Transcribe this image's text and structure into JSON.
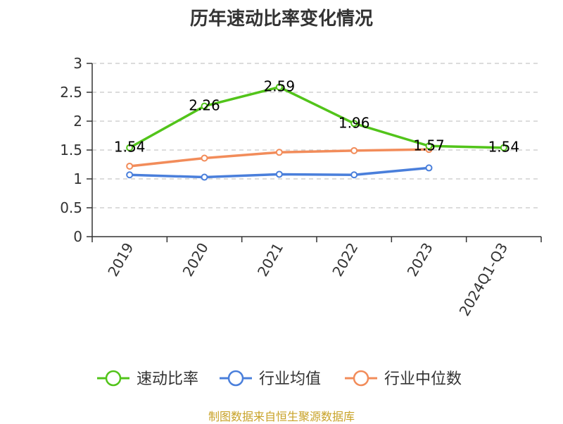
{
  "chart_data": {
    "type": "line",
    "title": "历年速动比率变化情况",
    "categories": [
      "2019",
      "2020",
      "2021",
      "2022",
      "2023",
      "2024Q1-Q3"
    ],
    "series": [
      {
        "name": "速动比率",
        "color": "#52c41a",
        "values": [
          1.54,
          2.26,
          2.59,
          1.96,
          1.57,
          1.54
        ],
        "data_labels": [
          "1.54",
          "2.26",
          "2.59",
          "1.96",
          "1.57",
          "1.54"
        ]
      },
      {
        "name": "行业均值",
        "color": "#4a7fdb",
        "values": [
          1.07,
          1.03,
          1.08,
          1.07,
          1.19,
          null
        ]
      },
      {
        "name": "行业中位数",
        "color": "#f28c5a",
        "values": [
          1.22,
          1.36,
          1.46,
          1.49,
          1.51,
          null
        ]
      }
    ],
    "y_ticks": [
      "0",
      "0.5",
      "1",
      "1.5",
      "2",
      "2.5",
      "3"
    ],
    "ylim": [
      0,
      3
    ],
    "grid": true,
    "legend_position": "bottom"
  },
  "source_note": "制图数据来自恒生聚源数据库"
}
